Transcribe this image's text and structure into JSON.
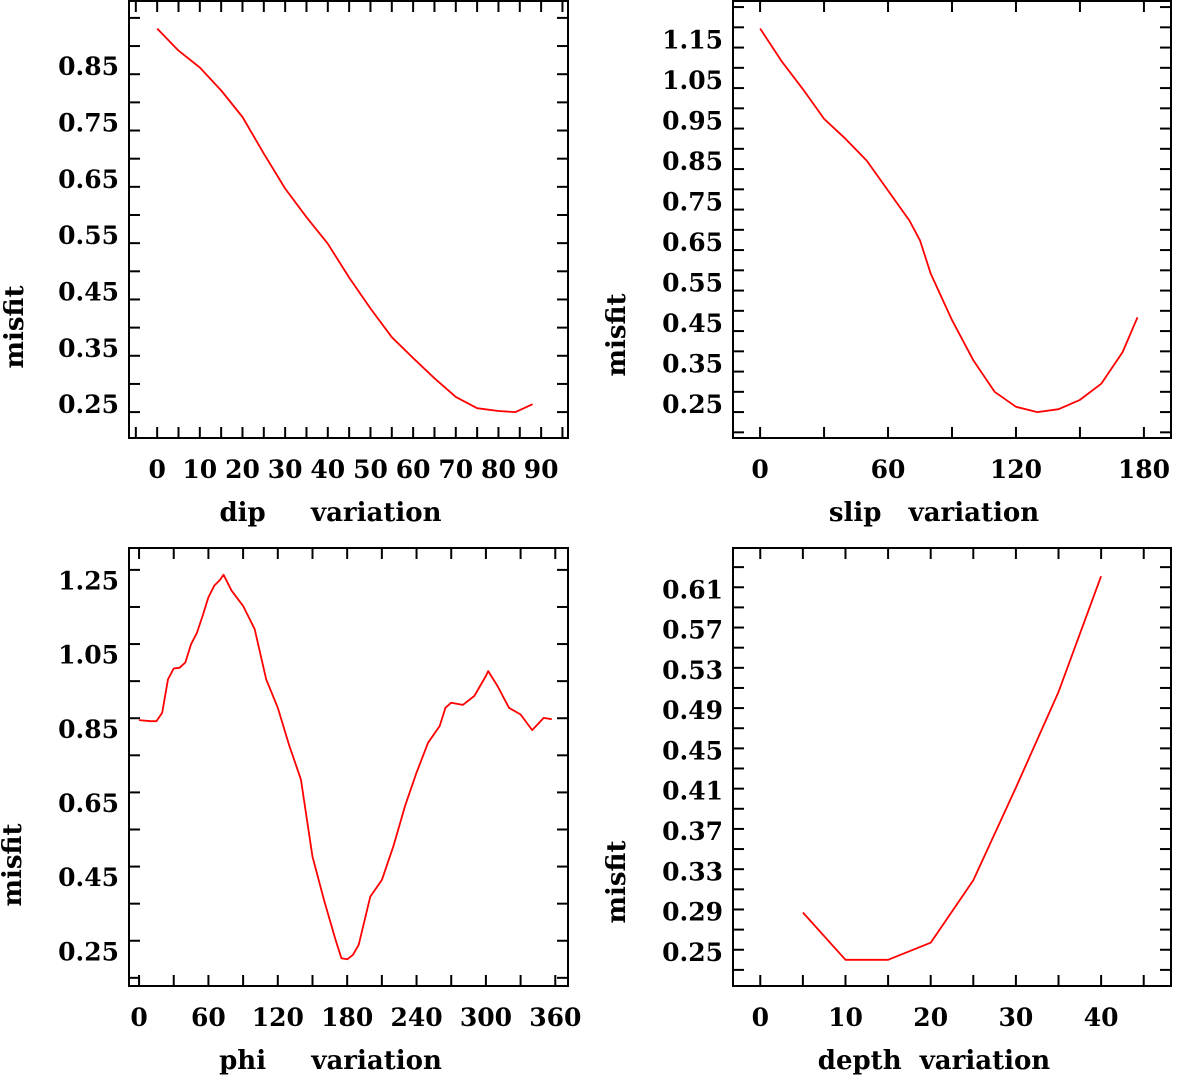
{
  "chart_data": [
    {
      "type": "line",
      "xlabel": "dip     variation",
      "ylabel": "misfit",
      "xlim": [
        -6.6,
        96.3
      ],
      "ylim": [
        0.204,
        0.98
      ],
      "xticks": {
        "minor_step": 5,
        "labels": [
          "0",
          "10",
          "20",
          "30",
          "40",
          "50",
          "60",
          "70",
          "80",
          "90"
        ],
        "label_values": [
          0,
          10,
          20,
          30,
          40,
          50,
          60,
          70,
          80,
          90
        ]
      },
      "yticks": {
        "minor_step": 0.05,
        "labels": [
          "0.25",
          "0.35",
          "0.45",
          "0.55",
          "0.65",
          "0.75",
          "0.85"
        ],
        "label_values": [
          0.25,
          0.35,
          0.45,
          0.55,
          0.65,
          0.75,
          0.85
        ]
      },
      "color": "#ff0000",
      "x": [
        0,
        5,
        10,
        15,
        20,
        25,
        30,
        35,
        40,
        45,
        50,
        55,
        60,
        65,
        70,
        75,
        80,
        84,
        88
      ],
      "y": [
        0.931,
        0.892,
        0.862,
        0.821,
        0.774,
        0.709,
        0.647,
        0.596,
        0.549,
        0.489,
        0.434,
        0.383,
        0.346,
        0.31,
        0.277,
        0.257,
        0.252,
        0.25,
        0.264
      ]
    },
    {
      "type": "line",
      "xlabel": "slip   variation",
      "ylabel": "misfit",
      "xlim": [
        -12.7,
        192.7
      ],
      "ylim": [
        0.186,
        1.265
      ],
      "xticks": {
        "minor_step": 30,
        "labels": [
          "0",
          "60",
          "120",
          "180"
        ],
        "label_values": [
          0,
          60,
          120,
          180
        ]
      },
      "yticks": {
        "minor_step": 0.05,
        "labels": [
          "0.25",
          "0.35",
          "0.45",
          "0.55",
          "0.65",
          "0.75",
          "0.85",
          "0.95",
          "1.05",
          "1.15"
        ],
        "label_values": [
          0.25,
          0.35,
          0.45,
          0.55,
          0.65,
          0.75,
          0.85,
          0.95,
          1.05,
          1.15
        ]
      },
      "color": "#ff0000",
      "x": [
        0,
        10,
        20,
        30,
        40,
        50,
        60,
        70,
        75,
        80,
        90,
        100,
        110,
        120,
        130,
        140,
        150,
        160,
        170,
        177
      ],
      "y": [
        1.197,
        1.117,
        1.048,
        0.974,
        0.925,
        0.871,
        0.797,
        0.723,
        0.674,
        0.592,
        0.477,
        0.378,
        0.3,
        0.263,
        0.25,
        0.257,
        0.28,
        0.32,
        0.398,
        0.484
      ]
    },
    {
      "type": "line",
      "xlabel": "phi     variation",
      "ylabel": "misfit",
      "xlim": [
        -8.7,
        371
      ],
      "ylim": [
        0.178,
        1.359
      ],
      "xticks": {
        "minor_step": 30,
        "labels": [
          "0",
          "60",
          "120",
          "180",
          "240",
          "300",
          "360"
        ],
        "label_values": [
          0,
          60,
          120,
          180,
          240,
          300,
          360
        ]
      },
      "yticks": {
        "minor_step": 0.1,
        "labels": [
          "0.25",
          "0.45",
          "0.65",
          "0.85",
          "1.05",
          "1.25"
        ],
        "label_values": [
          0.25,
          0.45,
          0.65,
          0.85,
          1.05,
          1.25
        ]
      },
      "color": "#ff0000",
      "x": [
        0,
        10,
        15,
        20,
        25,
        30,
        35,
        40,
        45,
        50,
        55,
        60,
        65,
        70,
        73,
        80,
        90,
        100,
        110,
        120,
        130,
        140,
        150,
        160,
        170,
        175,
        180,
        185,
        190,
        200,
        210,
        220,
        230,
        240,
        250,
        260,
        265,
        270,
        280,
        290,
        300,
        302,
        310,
        320,
        330,
        340,
        350,
        357
      ],
      "y": [
        0.895,
        0.892,
        0.892,
        0.915,
        1.005,
        1.034,
        1.036,
        1.05,
        1.1,
        1.13,
        1.176,
        1.226,
        1.257,
        1.273,
        1.287,
        1.244,
        1.203,
        1.14,
        1.005,
        0.928,
        0.825,
        0.735,
        0.527,
        0.41,
        0.302,
        0.253,
        0.25,
        0.262,
        0.289,
        0.419,
        0.464,
        0.555,
        0.663,
        0.753,
        0.834,
        0.879,
        0.928,
        0.942,
        0.936,
        0.96,
        1.014,
        1.027,
        0.987,
        0.928,
        0.91,
        0.868,
        0.901,
        0.897
      ]
    },
    {
      "type": "line",
      "xlabel": "depth  variation",
      "ylabel": "misfit",
      "xlim": [
        -3.2,
        48.2
      ],
      "ylim": [
        0.224,
        0.659
      ],
      "xticks": {
        "minor_step": 5,
        "labels": [
          "0",
          "10",
          "20",
          "30",
          "40"
        ],
        "label_values": [
          0,
          10,
          20,
          30,
          40
        ]
      },
      "yticks": {
        "minor_step": 0.02,
        "labels": [
          "0.25",
          "0.29",
          "0.33",
          "0.37",
          "0.41",
          "0.45",
          "0.49",
          "0.53",
          "0.57",
          "0.61"
        ],
        "label_values": [
          0.25,
          0.29,
          0.33,
          0.37,
          0.41,
          0.45,
          0.49,
          0.53,
          0.57,
          0.61
        ]
      },
      "color": "#ff0000",
      "x": [
        5,
        10,
        15,
        20,
        25,
        30,
        35,
        40
      ],
      "y": [
        0.297,
        0.25,
        0.25,
        0.267,
        0.329,
        0.421,
        0.516,
        0.631
      ]
    }
  ]
}
